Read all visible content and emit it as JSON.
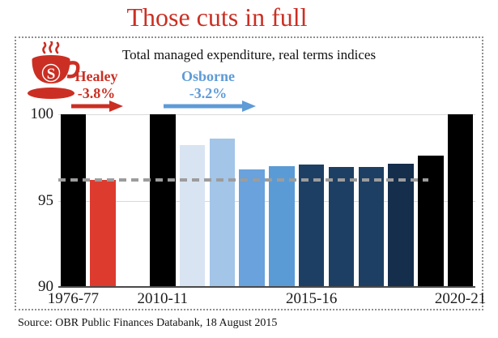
{
  "page": {
    "title": "Those cuts in full",
    "source": "Source: OBR Public Finances Databank, 18 August 2015"
  },
  "logo": {
    "letter": "S"
  },
  "colors": {
    "red": "#cb2f23",
    "blue": "#5e9bd7",
    "grid": "#d9d9d9",
    "axis": "#4a4a4a",
    "dash": "#9c9c9c",
    "border": "#8f8f8f"
  },
  "chart_data": {
    "type": "bar",
    "title": "Total managed expenditure, real terms indices",
    "ylabel": "",
    "xlabel": "",
    "ylim": [
      90,
      100
    ],
    "yticks": [
      100,
      95,
      90
    ],
    "grid": "horizontal gridlines at 95 and 100, solid axis line at 90",
    "slots": 14,
    "bars": [
      {
        "slot": 0,
        "value": 100,
        "color": "#000000"
      },
      {
        "slot": 1,
        "value": 96.2,
        "color": "#dd3b2e"
      },
      {
        "slot": 3,
        "value": 100,
        "color": "#000000"
      },
      {
        "slot": 4,
        "value": 98.2,
        "color": "#d9e4f2"
      },
      {
        "slot": 5,
        "value": 98.6,
        "color": "#a2c5e8"
      },
      {
        "slot": 6,
        "value": 96.8,
        "color": "#69a2dc"
      },
      {
        "slot": 7,
        "value": 97.0,
        "color": "#5b9bd5"
      },
      {
        "slot": 8,
        "value": 97.1,
        "color": "#1d3f63"
      },
      {
        "slot": 9,
        "value": 96.95,
        "color": "#1d3f63"
      },
      {
        "slot": 10,
        "value": 96.95,
        "color": "#1d3f63"
      },
      {
        "slot": 11,
        "value": 97.15,
        "color": "#142e4c"
      },
      {
        "slot": 12,
        "value": 97.6,
        "color": "#000000"
      },
      {
        "slot": 13,
        "value": 100,
        "color": "#000000"
      }
    ],
    "x_labels": [
      {
        "slot": 0,
        "text": "1976-77"
      },
      {
        "slot": 3,
        "text": "2010-11"
      },
      {
        "slot": 8,
        "text": "2015-16"
      },
      {
        "slot": 13,
        "text": "2020-21"
      }
    ],
    "reference_line": {
      "value": 96.2,
      "style": "dashed"
    },
    "annotations": [
      {
        "name": "Healey",
        "delta": "-3.8%",
        "arrow": "right",
        "color": "red"
      },
      {
        "name": "Osborne",
        "delta": "-3.2%",
        "arrow": "right",
        "color": "blue"
      }
    ],
    "legend": "none"
  }
}
